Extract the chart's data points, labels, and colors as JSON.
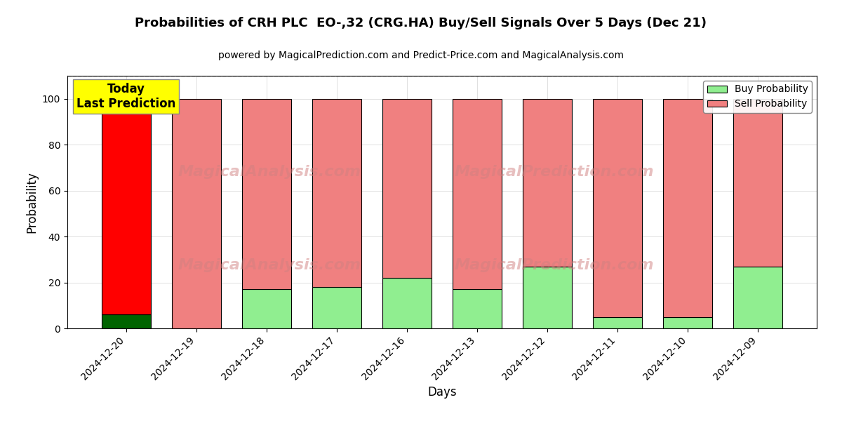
{
  "title": "Probabilities of CRH PLC  EO-,32 (CRG.HA) Buy/Sell Signals Over 5 Days (Dec 21)",
  "subtitle": "powered by MagicalPrediction.com and Predict-Price.com and MagicalAnalysis.com",
  "xlabel": "Days",
  "ylabel": "Probability",
  "dates": [
    "2024-12-20",
    "2024-12-19",
    "2024-12-18",
    "2024-12-17",
    "2024-12-16",
    "2024-12-13",
    "2024-12-12",
    "2024-12-11",
    "2024-12-10",
    "2024-12-09"
  ],
  "buy_values": [
    6,
    0,
    17,
    18,
    22,
    17,
    27,
    5,
    5,
    27
  ],
  "sell_values": [
    94,
    100,
    83,
    82,
    78,
    83,
    73,
    95,
    95,
    73
  ],
  "today_buy_color": "#006400",
  "today_sell_color": "#FF0000",
  "buy_color": "#90EE90",
  "sell_color": "#F08080",
  "today_annotation": "Today\nLast Prediction",
  "annotation_bg_color": "#FFFF00",
  "ylim": [
    0,
    110
  ],
  "yticks": [
    0,
    20,
    40,
    60,
    80,
    100
  ],
  "dashed_line_y": 110,
  "watermark_line1": "MagicalAnalysis.com",
  "watermark_line2": "MagicalPrediction.com",
  "watermark_line3": "MagicalAnalysis.com",
  "watermark_line4": "MagicalPrediction.com",
  "legend_buy_label": "Buy Probability",
  "legend_sell_label": "Sell Probability"
}
